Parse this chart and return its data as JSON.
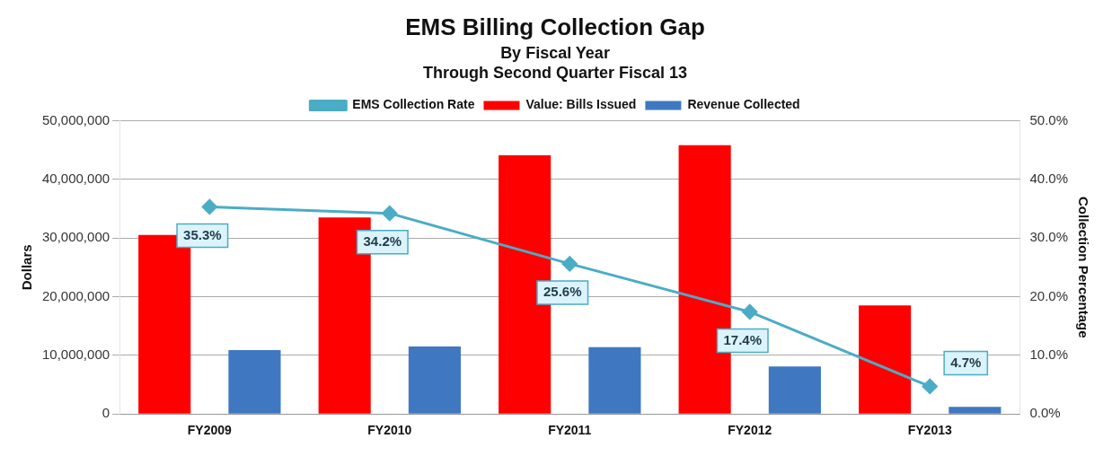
{
  "chart_data": {
    "type": "bar",
    "title": "EMS Billing Collection Gap",
    "subtitle": "By Fiscal Year\nThrough Second Quarter Fiscal 13",
    "categories": [
      "FY2009",
      "FY2010",
      "FY2011",
      "FY2012",
      "FY2013"
    ],
    "series": [
      {
        "name": "Value: Bills Issued",
        "color": "#ff0000",
        "values": [
          30500000,
          33500000,
          44100000,
          45800000,
          18500000
        ]
      },
      {
        "name": "Revenue Collected",
        "color": "#3f78c0",
        "values": [
          10900000,
          11500000,
          11400000,
          8100000,
          1200000
        ]
      },
      {
        "name": "EMS Collection Rate",
        "type": "line",
        "axis": "y2",
        "color": "#4bacc6",
        "marker": "diamond",
        "values": [
          35.3,
          34.2,
          25.6,
          17.4,
          4.7
        ],
        "value_labels": [
          "35.3%",
          "34.2%",
          "25.6%",
          "17.4%",
          "4.7%"
        ]
      }
    ],
    "ylabel": "Dollars",
    "y2label": "Collection Percentage",
    "ylim": [
      0,
      50000000
    ],
    "yticks": [
      {
        "value": 0,
        "label": "0"
      },
      {
        "value": 10000000,
        "label": "10,000,000"
      },
      {
        "value": 20000000,
        "label": "20,000,000"
      },
      {
        "value": 30000000,
        "label": "30,000,000"
      },
      {
        "value": 40000000,
        "label": "40,000,000"
      },
      {
        "value": 50000000,
        "label": "50,000,000"
      }
    ],
    "y2lim": [
      0,
      50
    ],
    "y2ticks": [
      {
        "value": 0,
        "label": "0.0%"
      },
      {
        "value": 10,
        "label": "10.0%"
      },
      {
        "value": 20,
        "label": "20.0%"
      },
      {
        "value": 30,
        "label": "30.0%"
      },
      {
        "value": 40,
        "label": "40.0%"
      },
      {
        "value": 50,
        "label": "50.0%"
      }
    ],
    "grid": "y",
    "legend": "top"
  }
}
